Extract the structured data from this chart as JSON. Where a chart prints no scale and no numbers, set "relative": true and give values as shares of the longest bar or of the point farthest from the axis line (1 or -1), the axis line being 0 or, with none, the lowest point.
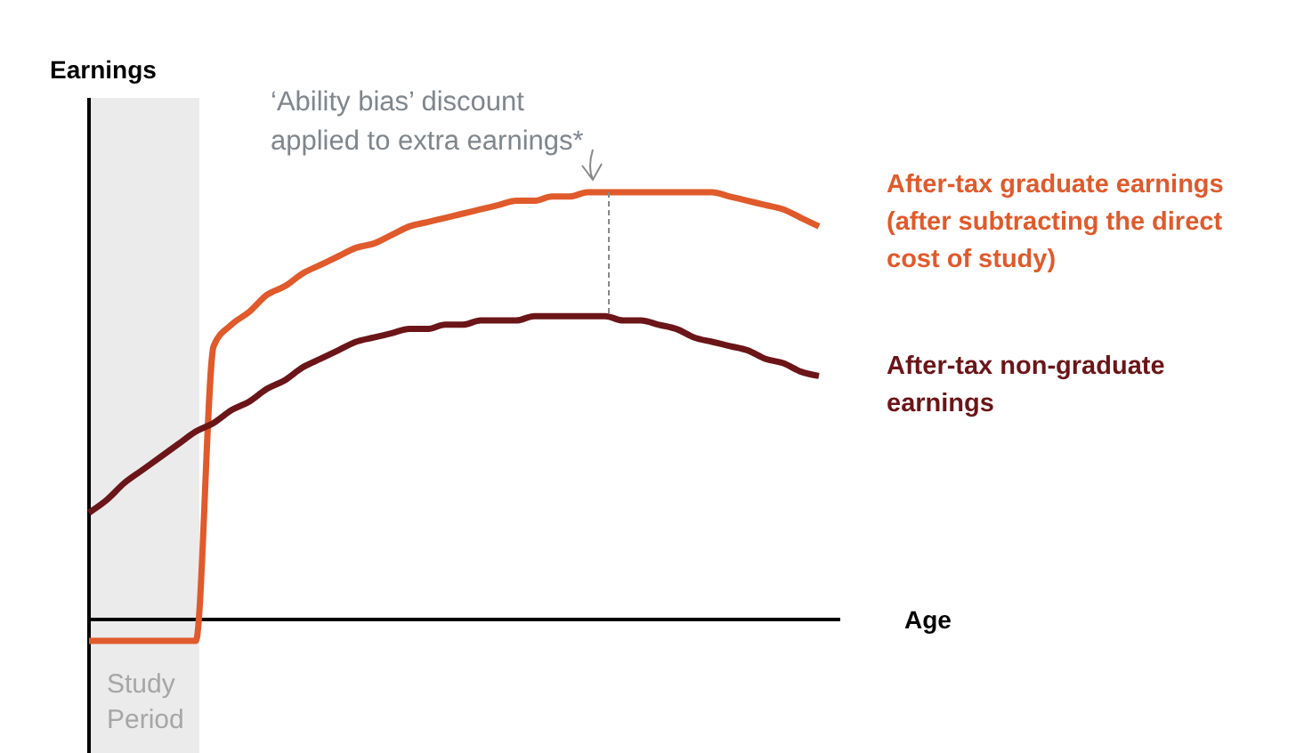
{
  "chart_data": {
    "type": "line",
    "relative": true,
    "ylabel": "Earnings",
    "xlabel": "Age",
    "categories": [
      null,
      null,
      null,
      null,
      null,
      null,
      null,
      null,
      null,
      null,
      null,
      null,
      null,
      null,
      null,
      null,
      null,
      null,
      null,
      null,
      null,
      null,
      null,
      null,
      null,
      null,
      null,
      null,
      null,
      null,
      null,
      null,
      null,
      null,
      null,
      null,
      null,
      null,
      null,
      null,
      null,
      null
    ],
    "series": [
      {
        "name": "After-tax graduate earnings (after subtracting the direct cost of study)",
        "color": "#e05a2b",
        "values": [
          -0.05,
          -0.05,
          -0.05,
          -0.05,
          -0.05,
          -0.05,
          -0.05,
          0.64,
          0.69,
          0.72,
          0.76,
          0.78,
          0.81,
          0.83,
          0.85,
          0.87,
          0.88,
          0.9,
          0.92,
          0.93,
          0.94,
          0.95,
          0.96,
          0.97,
          0.98,
          0.98,
          0.99,
          0.99,
          1,
          1,
          1,
          1,
          1,
          1,
          1,
          1,
          0.99,
          0.98,
          0.97,
          0.96,
          0.94,
          0.92
        ]
      },
      {
        "name": "After-tax non-graduate earnings",
        "color": "#6b1518",
        "values": [
          0.25,
          0.28,
          0.32,
          0.35,
          0.38,
          0.41,
          0.44,
          0.46,
          0.49,
          0.51,
          0.54,
          0.56,
          0.59,
          0.61,
          0.63,
          0.65,
          0.66,
          0.67,
          0.68,
          0.68,
          0.69,
          0.69,
          0.7,
          0.7,
          0.7,
          0.71,
          0.71,
          0.71,
          0.71,
          0.71,
          0.7,
          0.7,
          0.69,
          0.68,
          0.66,
          0.65,
          0.64,
          0.63,
          0.61,
          0.6,
          0.58,
          0.57
        ]
      }
    ],
    "annotations": [
      "‘Ability bias’ discount applied to extra earnings*",
      "Study Period"
    ],
    "marker": "none",
    "line_style": "solid"
  }
}
